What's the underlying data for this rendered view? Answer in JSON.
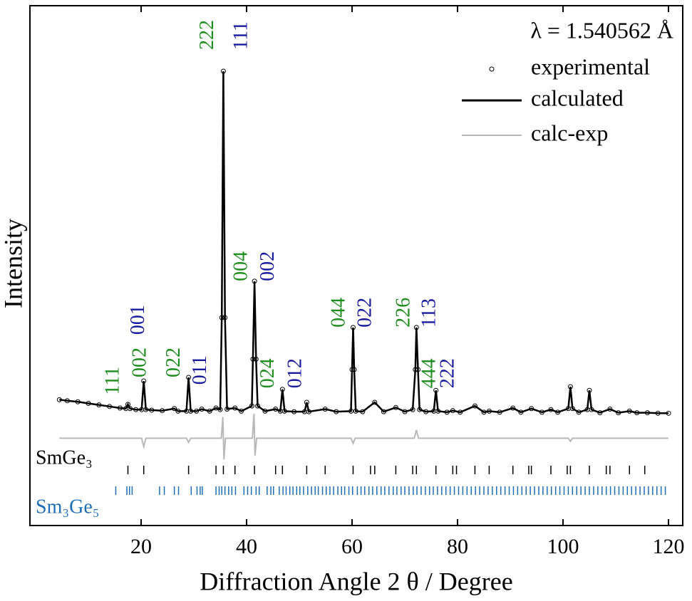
{
  "chart_data": {
    "type": "line",
    "xlabel": "Diffraction Angle 2 θ / Degree",
    "ylabel": "Intensity",
    "wavelength_note": "λ = 1.540562 Å",
    "xlim": [
      -1.08,
      122.7
    ],
    "ylim": [
      0,
      100
    ],
    "xticks": [
      20,
      40,
      60,
      80,
      100,
      120
    ],
    "x": [
      4.5,
      6,
      8,
      10,
      12,
      14,
      16,
      17.1,
      17.5,
      17.9,
      19,
      20.1,
      20.5,
      20.9,
      22,
      24,
      26.3,
      27,
      28.6,
      29.0,
      29.4,
      30.5,
      31.5,
      33,
      34.2,
      35.0,
      35.3,
      35.6,
      35.9,
      36.3,
      37.8,
      39,
      41.0,
      41.2,
      41.5,
      41.8,
      42.1,
      43.5,
      45.5,
      46.4,
      46.8,
      47.2,
      49,
      51.0,
      51.4,
      51.8,
      54.9,
      57,
      59.8,
      60.0,
      60.2,
      60.4,
      60.7,
      62,
      64.3,
      66,
      68.3,
      70,
      71.5,
      72.0,
      72.2,
      72.5,
      72.8,
      74,
      75.5,
      75.9,
      76.3,
      78,
      79.1,
      80.5,
      83.3,
      85,
      86.0,
      88,
      90.5,
      92,
      94.0,
      96,
      97.7,
      99,
      101.0,
      101.4,
      101.8,
      103,
      104.6,
      105.0,
      105.4,
      107,
      108.9,
      110.5,
      112.6,
      114,
      116,
      118,
      120
    ],
    "series": [
      {
        "name": "experimental",
        "style": "markers",
        "color": "#000000",
        "values": [
          24.2,
          24.0,
          23.8,
          23.5,
          23.2,
          22.9,
          22.6,
          22.5,
          23.3,
          22.5,
          22.3,
          22.3,
          27.8,
          22.3,
          22.2,
          22.1,
          22.5,
          22.0,
          22.0,
          28.5,
          22.0,
          22.0,
          22.4,
          22.0,
          22.6,
          22.3,
          40.0,
          87.4,
          40.0,
          22.4,
          22.6,
          22.0,
          23.0,
          32.0,
          47.0,
          32.0,
          23.0,
          22.0,
          22.4,
          22.0,
          26.2,
          22.0,
          21.9,
          21.9,
          23.7,
          21.9,
          22.4,
          21.9,
          22.0,
          30.0,
          38.1,
          30.0,
          22.0,
          21.9,
          23.7,
          21.9,
          22.7,
          21.9,
          22.3,
          30.0,
          38.1,
          30.0,
          22.3,
          21.9,
          22.0,
          26.0,
          22.0,
          21.8,
          22.1,
          21.8,
          23.0,
          21.8,
          22.0,
          21.8,
          22.6,
          21.8,
          22.5,
          21.8,
          22.3,
          21.8,
          22.5,
          26.7,
          22.5,
          21.8,
          22.3,
          26.0,
          22.3,
          21.7,
          22.4,
          21.7,
          22.0,
          21.7,
          21.7,
          21.6,
          21.6
        ]
      },
      {
        "name": "calculated",
        "style": "line",
        "color": "#000000",
        "values": [
          24.2,
          24.0,
          23.8,
          23.5,
          23.2,
          22.9,
          22.6,
          22.5,
          23.3,
          22.5,
          22.3,
          22.3,
          27.8,
          22.3,
          22.2,
          22.1,
          22.5,
          22.0,
          22.0,
          28.5,
          22.0,
          22.0,
          22.4,
          22.0,
          22.6,
          22.3,
          40.0,
          87.4,
          40.0,
          22.4,
          22.6,
          22.0,
          23.0,
          32.0,
          47.0,
          32.0,
          23.0,
          22.0,
          22.4,
          22.0,
          26.2,
          22.0,
          21.9,
          21.9,
          23.7,
          21.9,
          22.4,
          21.9,
          22.0,
          30.0,
          38.1,
          30.0,
          22.0,
          21.9,
          23.7,
          21.9,
          22.7,
          21.9,
          22.3,
          30.0,
          38.1,
          30.0,
          22.3,
          21.9,
          22.0,
          26.0,
          22.0,
          21.8,
          22.1,
          21.8,
          23.0,
          21.8,
          22.0,
          21.8,
          22.6,
          21.8,
          22.5,
          21.8,
          22.3,
          21.8,
          22.5,
          26.7,
          22.5,
          21.8,
          22.3,
          26.0,
          22.3,
          21.7,
          22.4,
          21.7,
          22.0,
          21.7,
          21.7,
          21.6,
          21.6
        ]
      },
      {
        "name": "calc-exp",
        "style": "line",
        "color": "#b8b8b8",
        "x": [
          4.5,
          20.1,
          20.5,
          20.9,
          28.6,
          29.0,
          29.4,
          35.2,
          35.5,
          35.7,
          36.0,
          41.1,
          41.4,
          41.6,
          41.9,
          59.8,
          60.2,
          60.6,
          71.8,
          72.2,
          72.6,
          101.0,
          101.4,
          101.8,
          120
        ],
        "values": [
          16.8,
          16.8,
          15.2,
          16.8,
          16.8,
          16.0,
          16.8,
          16.8,
          20.9,
          12.7,
          16.8,
          16.8,
          21.5,
          13.4,
          16.8,
          16.8,
          15.8,
          16.8,
          16.8,
          18.4,
          16.8,
          16.8,
          16.2,
          16.8,
          16.8
        ]
      },
      {
        "name": "SmGe₃",
        "style": "reflections",
        "color": "#000000",
        "x": [
          17.5,
          20.5,
          29.0,
          34.2,
          35.6,
          37.8,
          41.5,
          45.5,
          46.8,
          51.4,
          54.9,
          60.2,
          63.5,
          64.3,
          68.3,
          71.5,
          72.2,
          75.9,
          79.1,
          79.8,
          83.3,
          86.0,
          90.5,
          93.5,
          94.0,
          97.7,
          100.8,
          101.4,
          105.0,
          108.2,
          108.9,
          112.6,
          115.5
        ]
      },
      {
        "name": "Sm₃Ge₅",
        "style": "reflections",
        "color": "#1f6fb4",
        "x": [
          15.2,
          17.3,
          17.8,
          18.3,
          23.5,
          24.4,
          26.3,
          27.1,
          29.5,
          30.6,
          31.2,
          31.6,
          34.2,
          34.8,
          35.3,
          35.9,
          36.6,
          37.2,
          37.9,
          39.5,
          40.2,
          40.9,
          41.8,
          42.4,
          43.9,
          44.6,
          45.1,
          46.2,
          46.9,
          47.5,
          48.2,
          48.8,
          49.5,
          50.1,
          50.8,
          51.6,
          52.3,
          53.0,
          53.6,
          54.4,
          55.1,
          55.8,
          56.5,
          57.3,
          58.0,
          58.6,
          59.4,
          60.1,
          61.0,
          61.7,
          62.4,
          63.2,
          63.9,
          64.7,
          65.5,
          66.2,
          67.0,
          67.8,
          68.5,
          69.3,
          70.0,
          70.8,
          71.6,
          72.3,
          73.1,
          73.9,
          74.7,
          75.4,
          76.2,
          77.0,
          77.8,
          78.6,
          79.4,
          80.2,
          81.0,
          81.8,
          82.6,
          83.4,
          84.2,
          85.0,
          85.8,
          86.6,
          87.4,
          88.2,
          89.0,
          89.8,
          90.6,
          91.4,
          92.2,
          93.0,
          93.8,
          94.6,
          95.4,
          96.2,
          97.0,
          97.8,
          98.6,
          99.4,
          100.2,
          101.0,
          101.8,
          102.6,
          103.4,
          104.2,
          105.0,
          105.8,
          106.6,
          107.4,
          108.2,
          109.0,
          109.8,
          110.6,
          111.4,
          112.2,
          113.0,
          113.8,
          114.6,
          115.4,
          116.2,
          117.0,
          117.8,
          118.6,
          119.4
        ]
      }
    ],
    "annotations": [
      {
        "text": "111",
        "x": 14.9,
        "y": 25.1,
        "color": "#1e8c1e"
      },
      {
        "text": "002",
        "x": 20.0,
        "y": 28.5,
        "color": "#1e8c1e"
      },
      {
        "text": "001",
        "x": 19.7,
        "y": 36.7,
        "color": "#1a1a9c"
      },
      {
        "text": "022",
        "x": 26.4,
        "y": 28.5,
        "color": "#1e8c1e"
      },
      {
        "text": "011",
        "x": 31.4,
        "y": 27.1,
        "color": "#1a1a9c"
      },
      {
        "text": "222",
        "x": 32.8,
        "y": 91.5,
        "color": "#1e8c1e"
      },
      {
        "text": "111",
        "x": 39.2,
        "y": 91.5,
        "color": "#1a1a9c"
      },
      {
        "text": "004",
        "x": 39.2,
        "y": 47.0,
        "color": "#1e8c1e"
      },
      {
        "text": "002",
        "x": 44.3,
        "y": 47.0,
        "color": "#1a1a9c"
      },
      {
        "text": "024",
        "x": 44.3,
        "y": 26.4,
        "color": "#1e8c1e"
      },
      {
        "text": "012",
        "x": 49.5,
        "y": 26.4,
        "color": "#1a1a9c"
      },
      {
        "text": "044",
        "x": 57.7,
        "y": 38.1,
        "color": "#1e8c1e"
      },
      {
        "text": "022",
        "x": 62.7,
        "y": 38.1,
        "color": "#1a1a9c"
      },
      {
        "text": "226",
        "x": 70.0,
        "y": 38.1,
        "color": "#1e8c1e"
      },
      {
        "text": "113",
        "x": 74.9,
        "y": 38.1,
        "color": "#1a1a9c"
      },
      {
        "text": "444",
        "x": 74.9,
        "y": 26.4,
        "color": "#1e8c1e"
      },
      {
        "text": "222",
        "x": 78.4,
        "y": 26.4,
        "color": "#1a1a9c"
      }
    ]
  }
}
